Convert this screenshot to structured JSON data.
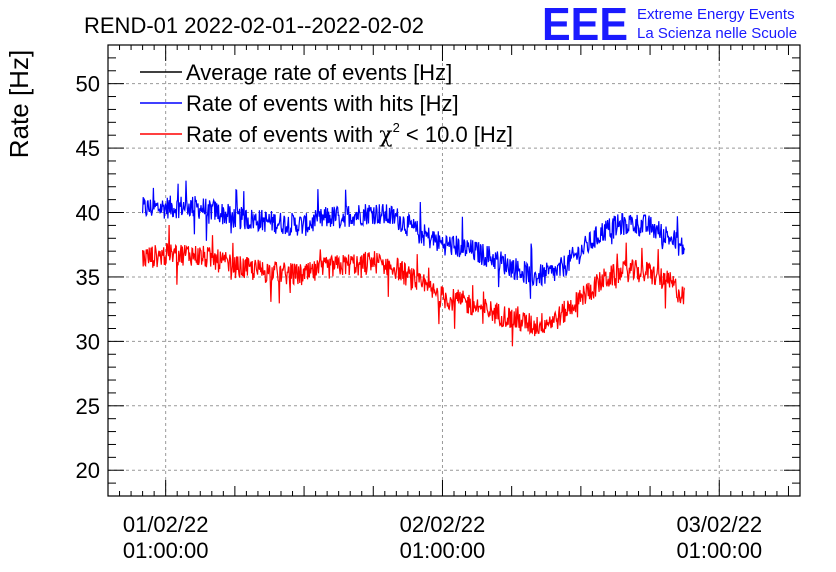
{
  "chart_data": {
    "type": "line",
    "title": "REND-01 2022-02-01--2022-02-02",
    "ylabel": "Rate [Hz]",
    "xlabel": "",
    "ylim": [
      18,
      53
    ],
    "xlim_hours": [
      -5,
      55
    ],
    "yticks": [
      20,
      25,
      30,
      35,
      40,
      45,
      50
    ],
    "xticks": [
      {
        "hour": 0,
        "date": "01/02/22",
        "time": "01:00:00"
      },
      {
        "hour": 24,
        "date": "02/02/22",
        "time": "01:00:00"
      },
      {
        "hour": 48,
        "date": "03/02/22",
        "time": "01:00:00"
      }
    ],
    "grid": true,
    "legend": [
      {
        "name": "Average rate of events [Hz]",
        "color": "#000000"
      },
      {
        "name": "Rate of events with hits [Hz]",
        "color": "#0000ff"
      },
      {
        "name_prefix": "Rate of events with ",
        "name_symbol": "χ",
        "name_sup": "2",
        "name_suffix": " < 10.0 [Hz]",
        "color": "#ff0000"
      }
    ],
    "series": [
      {
        "name": "Rate of events with hits [Hz]",
        "color": "#0000ff",
        "noise": 0.9,
        "x": [
          -2,
          0,
          2,
          4,
          6,
          8,
          10,
          12,
          14,
          16,
          18,
          20,
          22,
          24,
          26,
          28,
          30,
          32,
          34,
          36,
          38,
          40,
          42,
          44,
          45
        ],
        "values": [
          40.3,
          40.4,
          40.5,
          40.2,
          39.6,
          39.4,
          39.2,
          39.0,
          39.6,
          39.8,
          40.0,
          39.6,
          38.4,
          37.6,
          37.2,
          36.6,
          35.8,
          35.0,
          35.4,
          37.0,
          38.6,
          39.2,
          38.9,
          37.9,
          37.1
        ]
      },
      {
        "name": "Rate of events with χ2 < 10.0 [Hz]",
        "color": "#ff0000",
        "noise": 0.9,
        "x": [
          -2,
          0,
          2,
          4,
          6,
          8,
          10,
          12,
          14,
          16,
          18,
          20,
          22,
          24,
          26,
          28,
          30,
          32,
          34,
          36,
          38,
          40,
          42,
          44,
          45
        ],
        "values": [
          36.5,
          36.7,
          36.8,
          36.4,
          35.8,
          35.5,
          35.3,
          35.1,
          35.7,
          36.0,
          36.2,
          35.7,
          34.4,
          33.4,
          33.0,
          32.4,
          31.8,
          31.2,
          31.8,
          33.4,
          34.8,
          35.5,
          35.3,
          34.4,
          33.2
        ]
      }
    ]
  },
  "logo": {
    "letters": "EEE",
    "line1": "Extreme Energy Events",
    "line2": "La Scienza nelle Scuole",
    "color": "#1a1aff"
  }
}
